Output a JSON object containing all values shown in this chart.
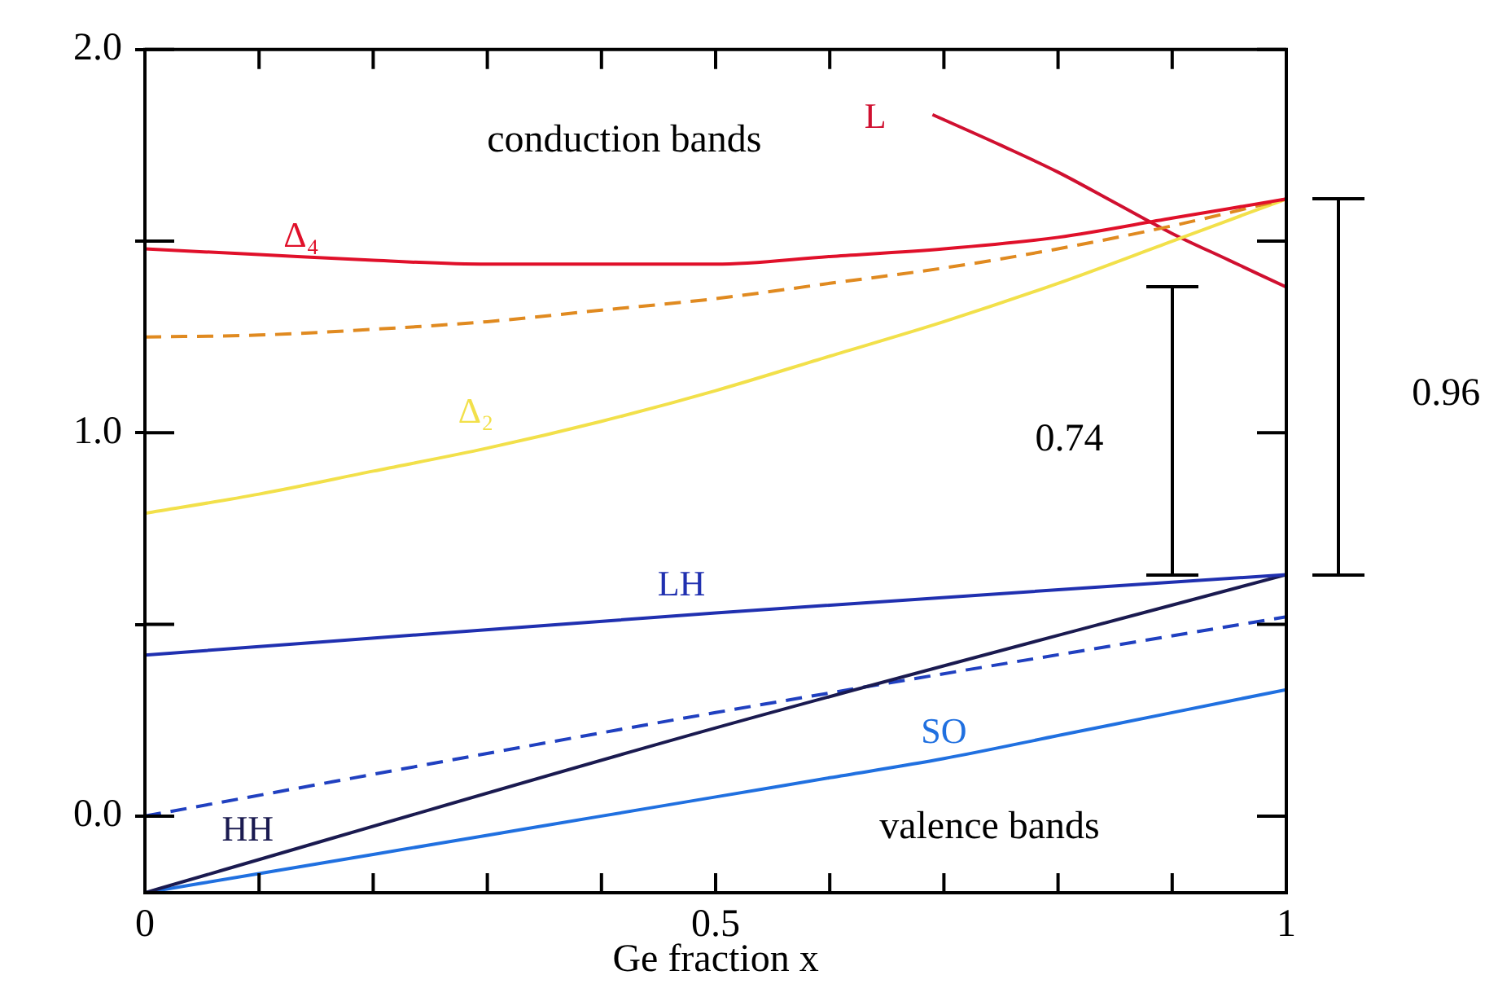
{
  "chart_data": {
    "type": "line",
    "xlabel": "Ge fraction x",
    "xlim": [
      0,
      1
    ],
    "ylim": [
      -0.2,
      2.0
    ],
    "xticks": [
      0,
      {
        "value": 0.1,
        "label": null
      },
      {
        "value": 0.2,
        "label": null
      },
      {
        "value": 0.3,
        "label": null
      },
      {
        "value": 0.4,
        "label": null
      },
      0.5,
      {
        "value": 0.6,
        "label": null
      },
      {
        "value": 0.7,
        "label": null
      },
      {
        "value": 0.8,
        "label": null
      },
      {
        "value": 0.9,
        "label": null
      },
      1
    ],
    "yticks": [
      {
        "value": 0,
        "label": "0.0"
      },
      {
        "value": 0.5,
        "label": null
      },
      {
        "value": 1,
        "label": "1.0"
      },
      {
        "value": 1.5,
        "label": null
      },
      {
        "value": 2,
        "label": "2.0"
      }
    ],
    "grid": false,
    "legend": false,
    "marker": "none",
    "annotations": [
      "conduction bands",
      "valence bands",
      "0.74",
      "0.96"
    ],
    "series": [
      {
        "name": "Δ₄",
        "color": "#e0102a",
        "x": [
          0,
          0.1,
          0.2,
          0.3,
          0.4,
          0.5,
          0.6,
          0.7,
          0.8,
          0.9,
          1
        ],
        "values": [
          1.48,
          1.465,
          1.45,
          1.44,
          1.44,
          1.44,
          1.46,
          1.48,
          1.51,
          1.56,
          1.61
        ]
      },
      {
        "color": "#e08a20",
        "line_style": "dashed",
        "x": [
          0,
          0.1,
          0.2,
          0.3,
          0.4,
          0.5,
          0.6,
          0.7,
          0.8,
          0.9,
          1
        ],
        "values": [
          1.25,
          1.255,
          1.27,
          1.29,
          1.32,
          1.35,
          1.39,
          1.43,
          1.48,
          1.54,
          1.61
        ]
      },
      {
        "name": "Δ₂",
        "color": "#f2e04a",
        "x": [
          0,
          0.1,
          0.2,
          0.3,
          0.4,
          0.5,
          0.6,
          0.7,
          0.8,
          0.9,
          1
        ],
        "values": [
          0.79,
          0.84,
          0.9,
          0.96,
          1.03,
          1.11,
          1.2,
          1.29,
          1.39,
          1.5,
          1.61
        ]
      },
      {
        "name": "L",
        "color": "#d01030",
        "x": [
          0.69,
          0.75,
          0.8,
          0.85,
          0.9,
          0.95,
          1
        ],
        "values": [
          1.83,
          1.75,
          1.68,
          1.6,
          1.52,
          1.45,
          1.38
        ]
      },
      {
        "name": "LH",
        "color": "#2030b0",
        "x": [
          0,
          0.5,
          1
        ],
        "values": [
          0.42,
          0.53,
          0.63
        ]
      },
      {
        "name": "HH",
        "color": "#1a1a50",
        "x": [
          0,
          0.5,
          1
        ],
        "values": [
          -0.2,
          0.23,
          0.63
        ]
      },
      {
        "color": "#2040c0",
        "line_style": "dashed",
        "x": [
          0,
          0.5,
          1
        ],
        "values": [
          0.0,
          0.27,
          0.52
        ]
      },
      {
        "name": "SO",
        "color": "#2070e0",
        "x": [
          0,
          0.1,
          0.2,
          0.3,
          0.4,
          0.5,
          0.6,
          0.7,
          0.8,
          0.9,
          1
        ],
        "values": [
          -0.2,
          -0.15,
          -0.1,
          -0.05,
          0.0,
          0.05,
          0.1,
          0.15,
          0.21,
          0.27,
          0.33
        ]
      }
    ]
  }
}
